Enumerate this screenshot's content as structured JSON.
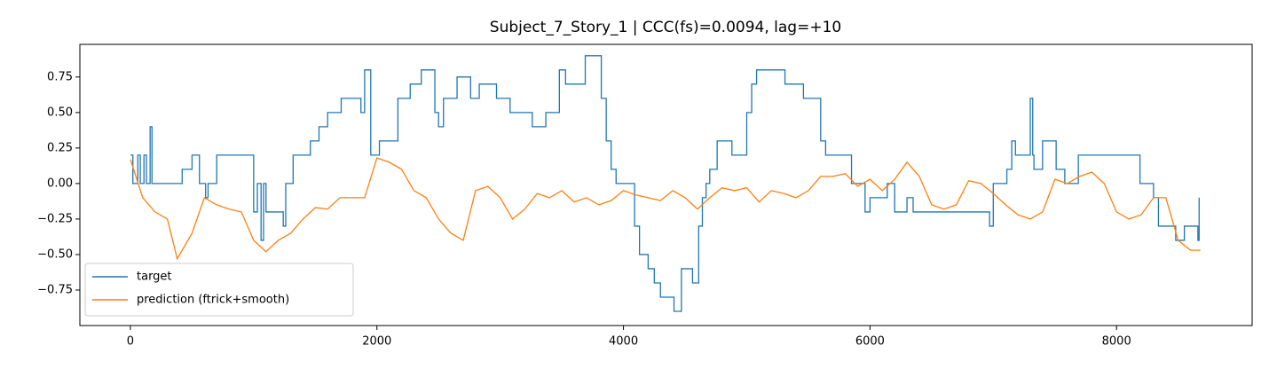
{
  "chart_data": {
    "type": "line",
    "title": "Subject_7_Story_1 | CCC(fs)=0.0094, lag=+10",
    "xlim": [
      -410,
      9100
    ],
    "ylim": [
      -1.0,
      0.98
    ],
    "xticks": [
      0,
      2000,
      4000,
      6000,
      8000
    ],
    "yticks": [
      {
        "value": -0.75,
        "label": "−0.75"
      },
      {
        "value": -0.5,
        "label": "−0.50"
      },
      {
        "value": -0.25,
        "label": "−0.25"
      },
      {
        "value": 0,
        "label": "0.00"
      },
      {
        "value": 0.25,
        "label": "0.25"
      },
      {
        "value": 0.5,
        "label": "0.50"
      },
      {
        "value": 0.75,
        "label": "0.75"
      }
    ],
    "legend": "lower left",
    "series": [
      {
        "name": "target",
        "color": "#1f77b4",
        "drawstyle": "steps-post",
        "x": [
          0,
          20,
          60,
          80,
          110,
          130,
          160,
          175,
          420,
          500,
          560,
          610,
          630,
          700,
          1000,
          1030,
          1060,
          1080,
          1100,
          1240,
          1260,
          1320,
          1460,
          1530,
          1600,
          1710,
          1870,
          1900,
          1950,
          2020,
          2170,
          2270,
          2360,
          2470,
          2500,
          2540,
          2650,
          2760,
          2830,
          2970,
          3080,
          3260,
          3370,
          3480,
          3530,
          3690,
          3820,
          3860,
          3900,
          3940,
          3980,
          4090,
          4130,
          4200,
          4250,
          4300,
          4410,
          4470,
          4560,
          4610,
          4640,
          4670,
          4700,
          4760,
          4880,
          5000,
          5040,
          5080,
          5310,
          5460,
          5600,
          5640,
          5710,
          5850,
          5960,
          6000,
          6140,
          6200,
          6300,
          6350,
          6430,
          6970,
          7000,
          7110,
          7150,
          7180,
          7300,
          7320,
          7330,
          7400,
          7510,
          7580,
          7690,
          8190,
          8300,
          8340,
          8370,
          8480,
          8550,
          8660,
          8670
        ],
        "values": [
          0.2,
          0,
          0.2,
          0,
          0.2,
          0,
          0.4,
          0,
          0.1,
          0.2,
          0,
          -0.1,
          0,
          0.2,
          -0.2,
          0,
          -0.4,
          0,
          -0.2,
          -0.3,
          0,
          0.2,
          0.3,
          0.4,
          0.5,
          0.6,
          0.5,
          0.8,
          0.2,
          0.3,
          0.6,
          0.7,
          0.8,
          0.5,
          0.4,
          0.6,
          0.75,
          0.6,
          0.7,
          0.6,
          0.5,
          0.4,
          0.5,
          0.8,
          0.7,
          0.9,
          0.6,
          0.3,
          0.1,
          0,
          0,
          -0.3,
          -0.5,
          -0.6,
          -0.7,
          -0.8,
          -0.9,
          -0.6,
          -0.7,
          -0.3,
          -0.1,
          0,
          0.1,
          0.3,
          0.2,
          0.5,
          0.7,
          0.8,
          0.7,
          0.6,
          0.3,
          0.2,
          0.2,
          0,
          -0.2,
          -0.1,
          0,
          -0.2,
          -0.1,
          -0.2,
          -0.2,
          -0.3,
          0,
          0.1,
          0.3,
          0.2,
          0.6,
          0.2,
          0.1,
          0.3,
          0.1,
          0,
          0.2,
          0,
          -0.1,
          -0.3,
          -0.3,
          -0.4,
          -0.3,
          -0.4,
          -0.1
        ]
      },
      {
        "name": "prediction (ftrick+smooth)",
        "color": "#ff7f0e",
        "drawstyle": "default",
        "x": [
          0,
          100,
          200,
          300,
          380,
          500,
          600,
          700,
          800,
          900,
          1000,
          1100,
          1200,
          1300,
          1400,
          1500,
          1600,
          1700,
          1800,
          1900,
          2000,
          2100,
          2200,
          2300,
          2400,
          2500,
          2600,
          2700,
          2800,
          2900,
          3000,
          3100,
          3200,
          3300,
          3400,
          3500,
          3600,
          3700,
          3800,
          3900,
          4000,
          4100,
          4200,
          4300,
          4400,
          4500,
          4600,
          4700,
          4800,
          4900,
          5000,
          5100,
          5200,
          5300,
          5400,
          5500,
          5600,
          5700,
          5800,
          5900,
          6000,
          6100,
          6200,
          6300,
          6400,
          6500,
          6600,
          6700,
          6800,
          6900,
          7000,
          7100,
          7200,
          7300,
          7400,
          7500,
          7600,
          7700,
          7800,
          7900,
          8000,
          8100,
          8200,
          8300,
          8400,
          8500,
          8600,
          8680
        ],
        "values": [
          0.17,
          -0.1,
          -0.2,
          -0.25,
          -0.53,
          -0.35,
          -0.1,
          -0.15,
          -0.18,
          -0.2,
          -0.4,
          -0.48,
          -0.4,
          -0.35,
          -0.25,
          -0.17,
          -0.18,
          -0.1,
          -0.1,
          -0.1,
          0.18,
          0.15,
          0.1,
          -0.05,
          -0.1,
          -0.25,
          -0.35,
          -0.4,
          -0.05,
          -0.02,
          -0.1,
          -0.25,
          -0.18,
          -0.07,
          -0.1,
          -0.05,
          -0.13,
          -0.1,
          -0.15,
          -0.12,
          -0.05,
          -0.08,
          -0.1,
          -0.12,
          -0.05,
          -0.1,
          -0.18,
          -0.1,
          -0.03,
          -0.05,
          -0.03,
          -0.13,
          -0.05,
          -0.07,
          -0.1,
          -0.05,
          0.05,
          0.05,
          0.07,
          -0.02,
          0.03,
          -0.05,
          0.03,
          0.15,
          0.05,
          -0.15,
          -0.18,
          -0.15,
          0.02,
          0,
          -0.07,
          -0.15,
          -0.22,
          -0.25,
          -0.2,
          0.03,
          0,
          0.05,
          0.08,
          0,
          -0.2,
          -0.25,
          -0.22,
          -0.1,
          -0.1,
          -0.4,
          -0.47,
          -0.47
        ]
      }
    ]
  }
}
